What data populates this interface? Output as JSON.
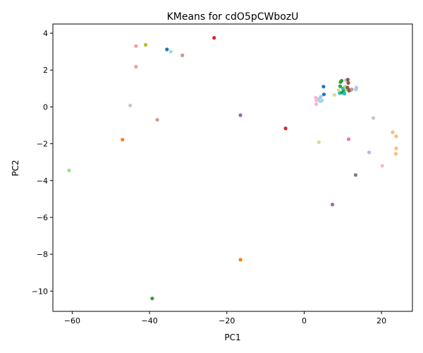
{
  "chart_data": {
    "type": "scatter",
    "title": "KMeans for cdO5pCWbozU",
    "xlabel": "PC1",
    "ylabel": "PC2",
    "xlim": [
      -65,
      28
    ],
    "ylim": [
      -11.1,
      4.5
    ],
    "xticks": [
      -60,
      -40,
      -20,
      0,
      20
    ],
    "yticks": [
      -10,
      -8,
      -6,
      -4,
      -2,
      0,
      2,
      4
    ],
    "grid": false,
    "legend": "none",
    "points": [
      {
        "x": -23.3,
        "y": 3.75,
        "color": "#d62728"
      },
      {
        "x": -41.0,
        "y": 3.37,
        "color": "#bcbd22"
      },
      {
        "x": -43.5,
        "y": 3.3,
        "color": "#ff9896"
      },
      {
        "x": -35.5,
        "y": 3.12,
        "color": "#1f77b4"
      },
      {
        "x": -34.5,
        "y": 3.0,
        "color": "#9edae5"
      },
      {
        "x": -31.5,
        "y": 2.8,
        "color": "#c49c94"
      },
      {
        "x": -43.5,
        "y": 2.18,
        "color": "#ff9896"
      },
      {
        "x": -45.0,
        "y": 0.08,
        "color": "#c7c7c7"
      },
      {
        "x": -38.0,
        "y": -0.7,
        "color": "#c49c94"
      },
      {
        "x": -16.5,
        "y": -0.45,
        "color": "#9467bd"
      },
      {
        "x": -4.8,
        "y": -1.17,
        "color": "#d62728"
      },
      {
        "x": -47.0,
        "y": -1.78,
        "color": "#ff7f0e"
      },
      {
        "x": -60.8,
        "y": -3.45,
        "color": "#98df8a"
      },
      {
        "x": -16.5,
        "y": -8.3,
        "color": "#ff7f0e"
      },
      {
        "x": -39.3,
        "y": -10.4,
        "color": "#2ca02c"
      },
      {
        "x": 3.8,
        "y": -1.92,
        "color": "#dbdb8d"
      },
      {
        "x": 7.3,
        "y": -5.3,
        "color": "#9467bd"
      },
      {
        "x": 11.5,
        "y": -1.75,
        "color": "#e377c2"
      },
      {
        "x": 13.3,
        "y": -3.7,
        "color": "#7f7f7f"
      },
      {
        "x": 16.8,
        "y": -2.47,
        "color": "#c5b0d5"
      },
      {
        "x": 20.2,
        "y": -3.2,
        "color": "#f7b6d2"
      },
      {
        "x": 17.9,
        "y": -0.6,
        "color": "#c7c7c7"
      },
      {
        "x": 22.9,
        "y": -1.38,
        "color": "#ffbb78"
      },
      {
        "x": 23.8,
        "y": -1.6,
        "color": "#ffbb78"
      },
      {
        "x": 23.8,
        "y": -2.25,
        "color": "#ffbb78"
      },
      {
        "x": 23.7,
        "y": -2.55,
        "color": "#ffbb78"
      },
      {
        "x": 3.0,
        "y": 0.5,
        "color": "#f7b6d2"
      },
      {
        "x": 3.2,
        "y": 0.35,
        "color": "#f7b6d2"
      },
      {
        "x": 3.1,
        "y": 0.15,
        "color": "#f7b6d2"
      },
      {
        "x": 3.8,
        "y": 0.42,
        "color": "#9edae5"
      },
      {
        "x": 4.2,
        "y": 0.3,
        "color": "#9edae5"
      },
      {
        "x": 4.6,
        "y": 0.35,
        "color": "#9edae5"
      },
      {
        "x": 4.3,
        "y": 0.55,
        "color": "#aec7e8"
      },
      {
        "x": 5.0,
        "y": 1.1,
        "color": "#1f77b4"
      },
      {
        "x": 5.1,
        "y": 0.68,
        "color": "#1f77b4"
      },
      {
        "x": 7.8,
        "y": 0.65,
        "color": "#dbdb8d"
      },
      {
        "x": 8.9,
        "y": 0.9,
        "color": "#dbdb8d"
      },
      {
        "x": 9.2,
        "y": 0.75,
        "color": "#17becf"
      },
      {
        "x": 9.4,
        "y": 1.35,
        "color": "#2ca02c"
      },
      {
        "x": 9.7,
        "y": 1.42,
        "color": "#2ca02c"
      },
      {
        "x": 9.3,
        "y": 1.12,
        "color": "#2ca02c"
      },
      {
        "x": 9.8,
        "y": 0.78,
        "color": "#2ca02c"
      },
      {
        "x": 10.2,
        "y": 0.88,
        "color": "#2ca02c"
      },
      {
        "x": 10.0,
        "y": 1.0,
        "color": "#17becf"
      },
      {
        "x": 10.4,
        "y": 0.72,
        "color": "#17becf"
      },
      {
        "x": 10.6,
        "y": 1.1,
        "color": "#98df8a"
      },
      {
        "x": 10.8,
        "y": 1.45,
        "color": "#aec7e8"
      },
      {
        "x": 10.9,
        "y": 0.95,
        "color": "#98df8a"
      },
      {
        "x": 11.3,
        "y": 1.48,
        "color": "#8c564b"
      },
      {
        "x": 11.4,
        "y": 1.3,
        "color": "#8c564b"
      },
      {
        "x": 11.2,
        "y": 1.05,
        "color": "#8c564b"
      },
      {
        "x": 11.6,
        "y": 0.88,
        "color": "#8c564b"
      },
      {
        "x": 11.9,
        "y": 0.92,
        "color": "#8c564b"
      },
      {
        "x": 12.3,
        "y": 0.95,
        "color": "#c49c94"
      },
      {
        "x": 13.5,
        "y": 1.05,
        "color": "#aec7e8"
      },
      {
        "x": 13.4,
        "y": 0.95,
        "color": "#aec7e8"
      }
    ]
  }
}
